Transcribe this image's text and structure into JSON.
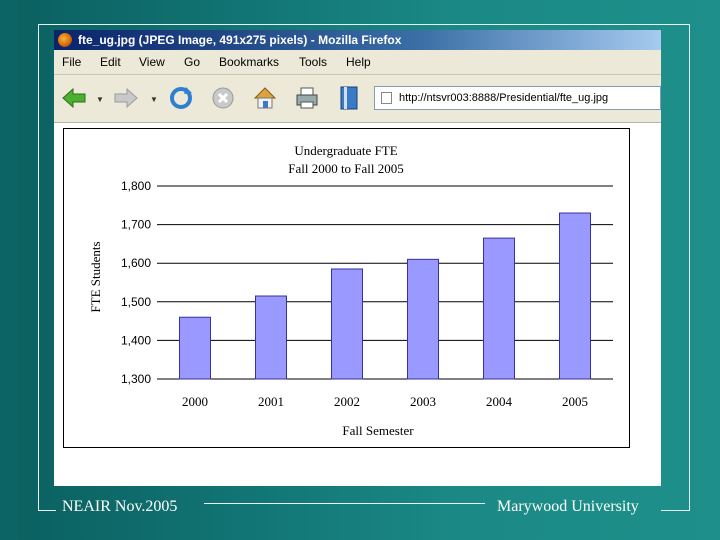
{
  "window": {
    "title": "fte_ug.jpg (JPEG Image, 491x275 pixels) - Mozilla Firefox"
  },
  "menu": [
    "File",
    "Edit",
    "View",
    "Go",
    "Bookmarks",
    "Tools",
    "Help"
  ],
  "toolbar": {
    "icons": [
      "back-arrow-icon",
      "forward-arrow-icon",
      "reload-icon",
      "stop-icon",
      "home-icon",
      "print-icon",
      "bookmark-icon"
    ],
    "url": "http://ntsvr003:8888/Presidential/fte_ug.jpg"
  },
  "chart_data": {
    "type": "bar",
    "title": "Undergraduate FTE",
    "subtitle": "Fall 2000 to Fall 2005",
    "xlabel": "Fall Semester",
    "ylabel": "FTE Students",
    "categories": [
      "2000",
      "2001",
      "2002",
      "2003",
      "2004",
      "2005"
    ],
    "values": [
      1460,
      1515,
      1585,
      1610,
      1665,
      1730
    ],
    "ylim": [
      1300,
      1800
    ],
    "yticks": [
      1300,
      1400,
      1500,
      1600,
      1700,
      1800
    ],
    "ytick_labels": [
      "1,300",
      "1,400",
      "1,500",
      "1,600",
      "1,700",
      "1,800"
    ],
    "grid": true,
    "bar_color": "#9999ff",
    "bar_edge_color": "#333399"
  },
  "footer": {
    "left": "NEAIR Nov.2005",
    "right": "Marywood University"
  },
  "colors": {
    "background": "#127575",
    "titlebar": "#0a246a",
    "chrome": "#ece9d8"
  }
}
